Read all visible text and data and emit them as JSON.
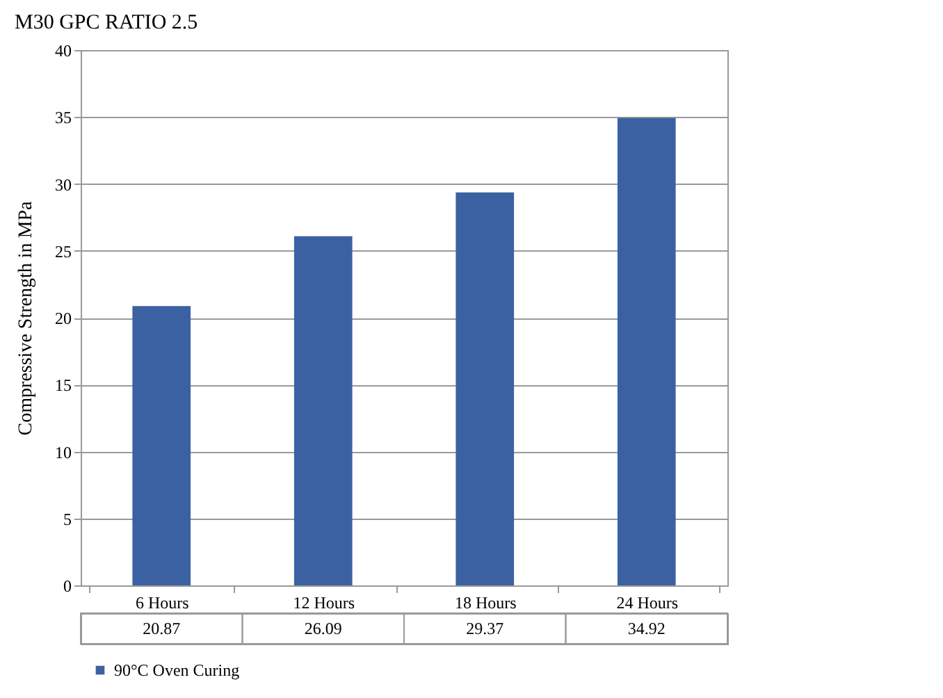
{
  "chart_data": {
    "type": "bar",
    "title": "M30 GPC RATIO 2.5",
    "ylabel": "Compressive Strength in MPa",
    "categories": [
      "6 Hours",
      "12 Hours",
      "18 Hours",
      "24 Hours"
    ],
    "series": [
      {
        "name": "90°C Oven Curing",
        "color": "#3c61a3",
        "values": [
          20.87,
          26.09,
          29.37,
          34.92
        ]
      }
    ],
    "ylim": [
      0,
      40
    ],
    "yticks": [
      0,
      5,
      10,
      15,
      20,
      25,
      30,
      35,
      40
    ],
    "grid": "y",
    "legend": "bottom left",
    "data_labels": true
  }
}
